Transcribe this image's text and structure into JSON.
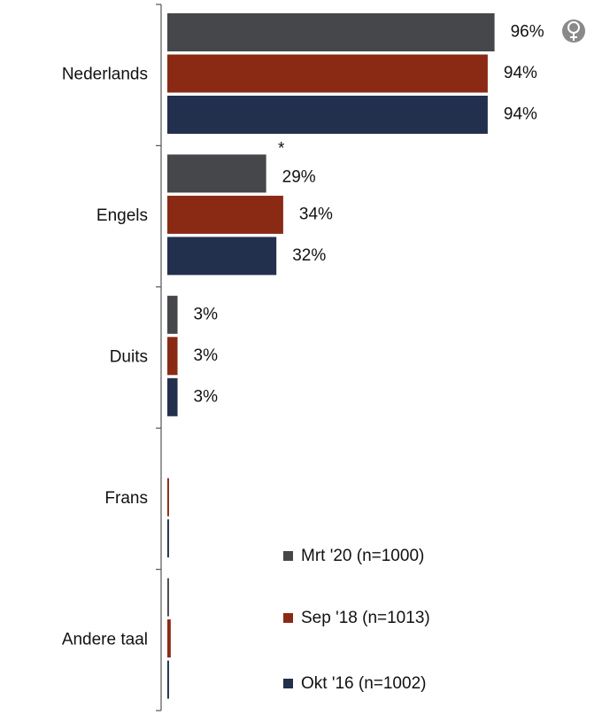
{
  "chart_data": {
    "type": "bar",
    "orientation": "horizontal",
    "categories": [
      "Nederlands",
      "Engels",
      "Duits",
      "Frans",
      "Andere taal"
    ],
    "series": [
      {
        "name": "Mrt '20 (n=1000)",
        "color": "#45474a",
        "values": [
          96,
          29,
          3,
          0,
          0.5
        ],
        "value_labels": [
          "96%",
          "29%",
          "3%",
          null,
          null
        ]
      },
      {
        "name": "Sep '18 (n=1013)",
        "color": "#8b2a14",
        "values": [
          94,
          34,
          3,
          0.5,
          1
        ],
        "value_labels": [
          "94%",
          "34%",
          "3%",
          null,
          null
        ]
      },
      {
        "name": "Okt '16 (n=1002)",
        "color": "#22304d",
        "values": [
          94,
          32,
          3,
          0.5,
          0.5
        ],
        "value_labels": [
          "94%",
          "32%",
          "3%",
          null,
          null
        ]
      }
    ],
    "xlim": [
      0,
      100
    ],
    "annotations": [
      "*"
    ],
    "legend": "lower right"
  }
}
